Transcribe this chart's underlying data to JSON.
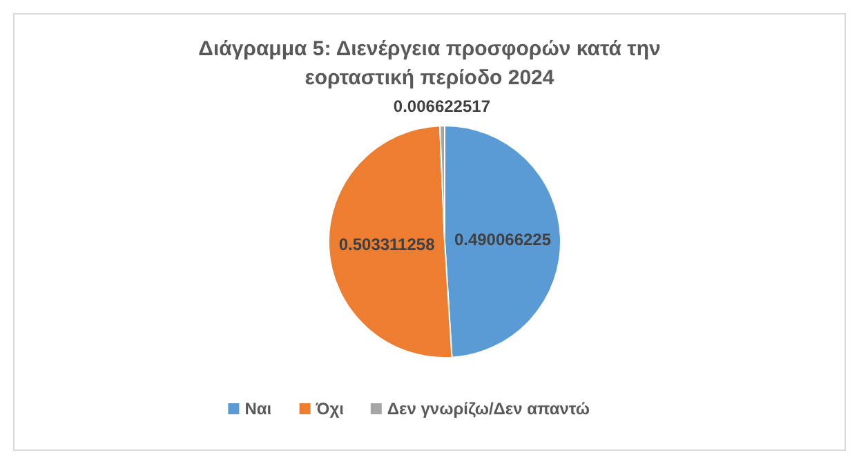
{
  "chart_data": {
    "type": "pie",
    "title": "Διάγραμμα 5: Διενέργεια προσφορών κατά την εορταστική περίοδο 2024",
    "categories": [
      "Ναι",
      "Όχι",
      "Δεν γνωρίζω/Δεν απαντώ"
    ],
    "values": [
      0.490066225,
      0.503311258,
      0.006622517
    ],
    "colors": [
      "#5b9bd5",
      "#ed7d31",
      "#a5a5a5"
    ],
    "data_labels": true,
    "legend": "bottom"
  }
}
